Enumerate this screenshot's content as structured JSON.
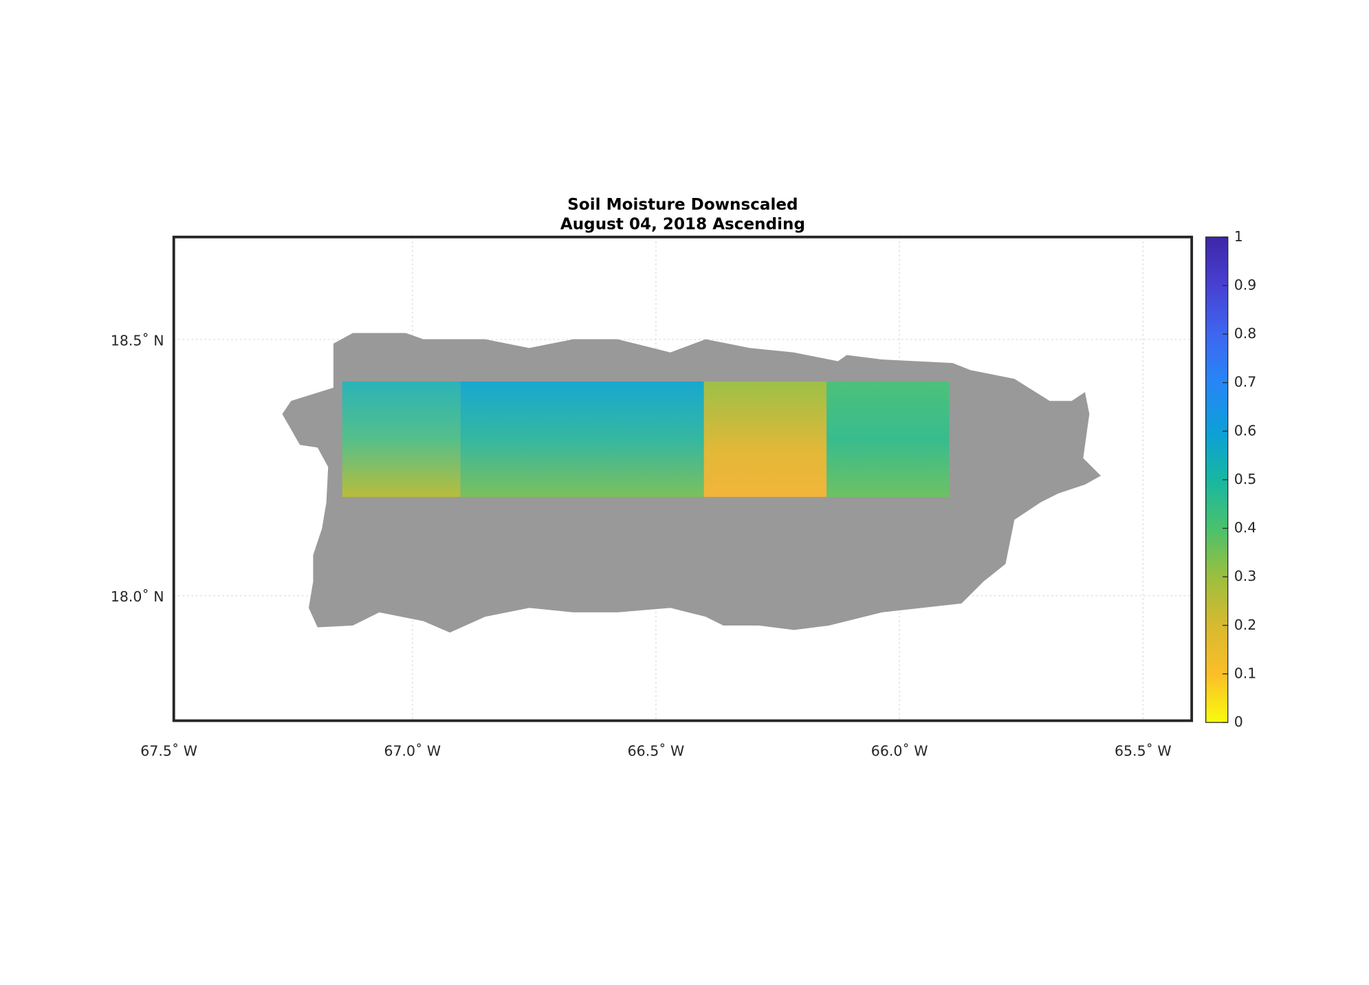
{
  "chart_data": {
    "type": "map",
    "title": "Soil Moisture Downscaled",
    "subtitle": "August 04, 2018 Ascending",
    "xlim": [
      -67.49,
      -65.4
    ],
    "ylim": [
      17.756,
      18.7
    ],
    "xticks": [
      {
        "value": -67.5,
        "label": "67.5˚ W"
      },
      {
        "value": -67.0,
        "label": "67.0˚ W"
      },
      {
        "value": -66.5,
        "label": "66.5˚ W"
      },
      {
        "value": -66.0,
        "label": "66.0˚ W"
      },
      {
        "value": -65.5,
        "label": "65.5˚ W"
      }
    ],
    "yticks": [
      {
        "value": 18.0,
        "label": "18.0˚ N"
      },
      {
        "value": 18.5,
        "label": "18.5˚ N"
      }
    ],
    "grid": true,
    "colorbar": {
      "clim": [
        0,
        1
      ],
      "ticks": [
        0,
        0.1,
        0.2,
        0.3,
        0.4,
        0.5,
        0.6,
        0.7,
        0.8,
        0.9,
        1
      ],
      "colormap": [
        "#f9fb0e",
        "#fbbe29",
        "#d7ba2f",
        "#9cbf3f",
        "#4ac16d",
        "#17b7a2",
        "#0d9fd8",
        "#2786f6",
        "#3e66f0",
        "#4741d2",
        "#3e26a8"
      ]
    }
  }
}
